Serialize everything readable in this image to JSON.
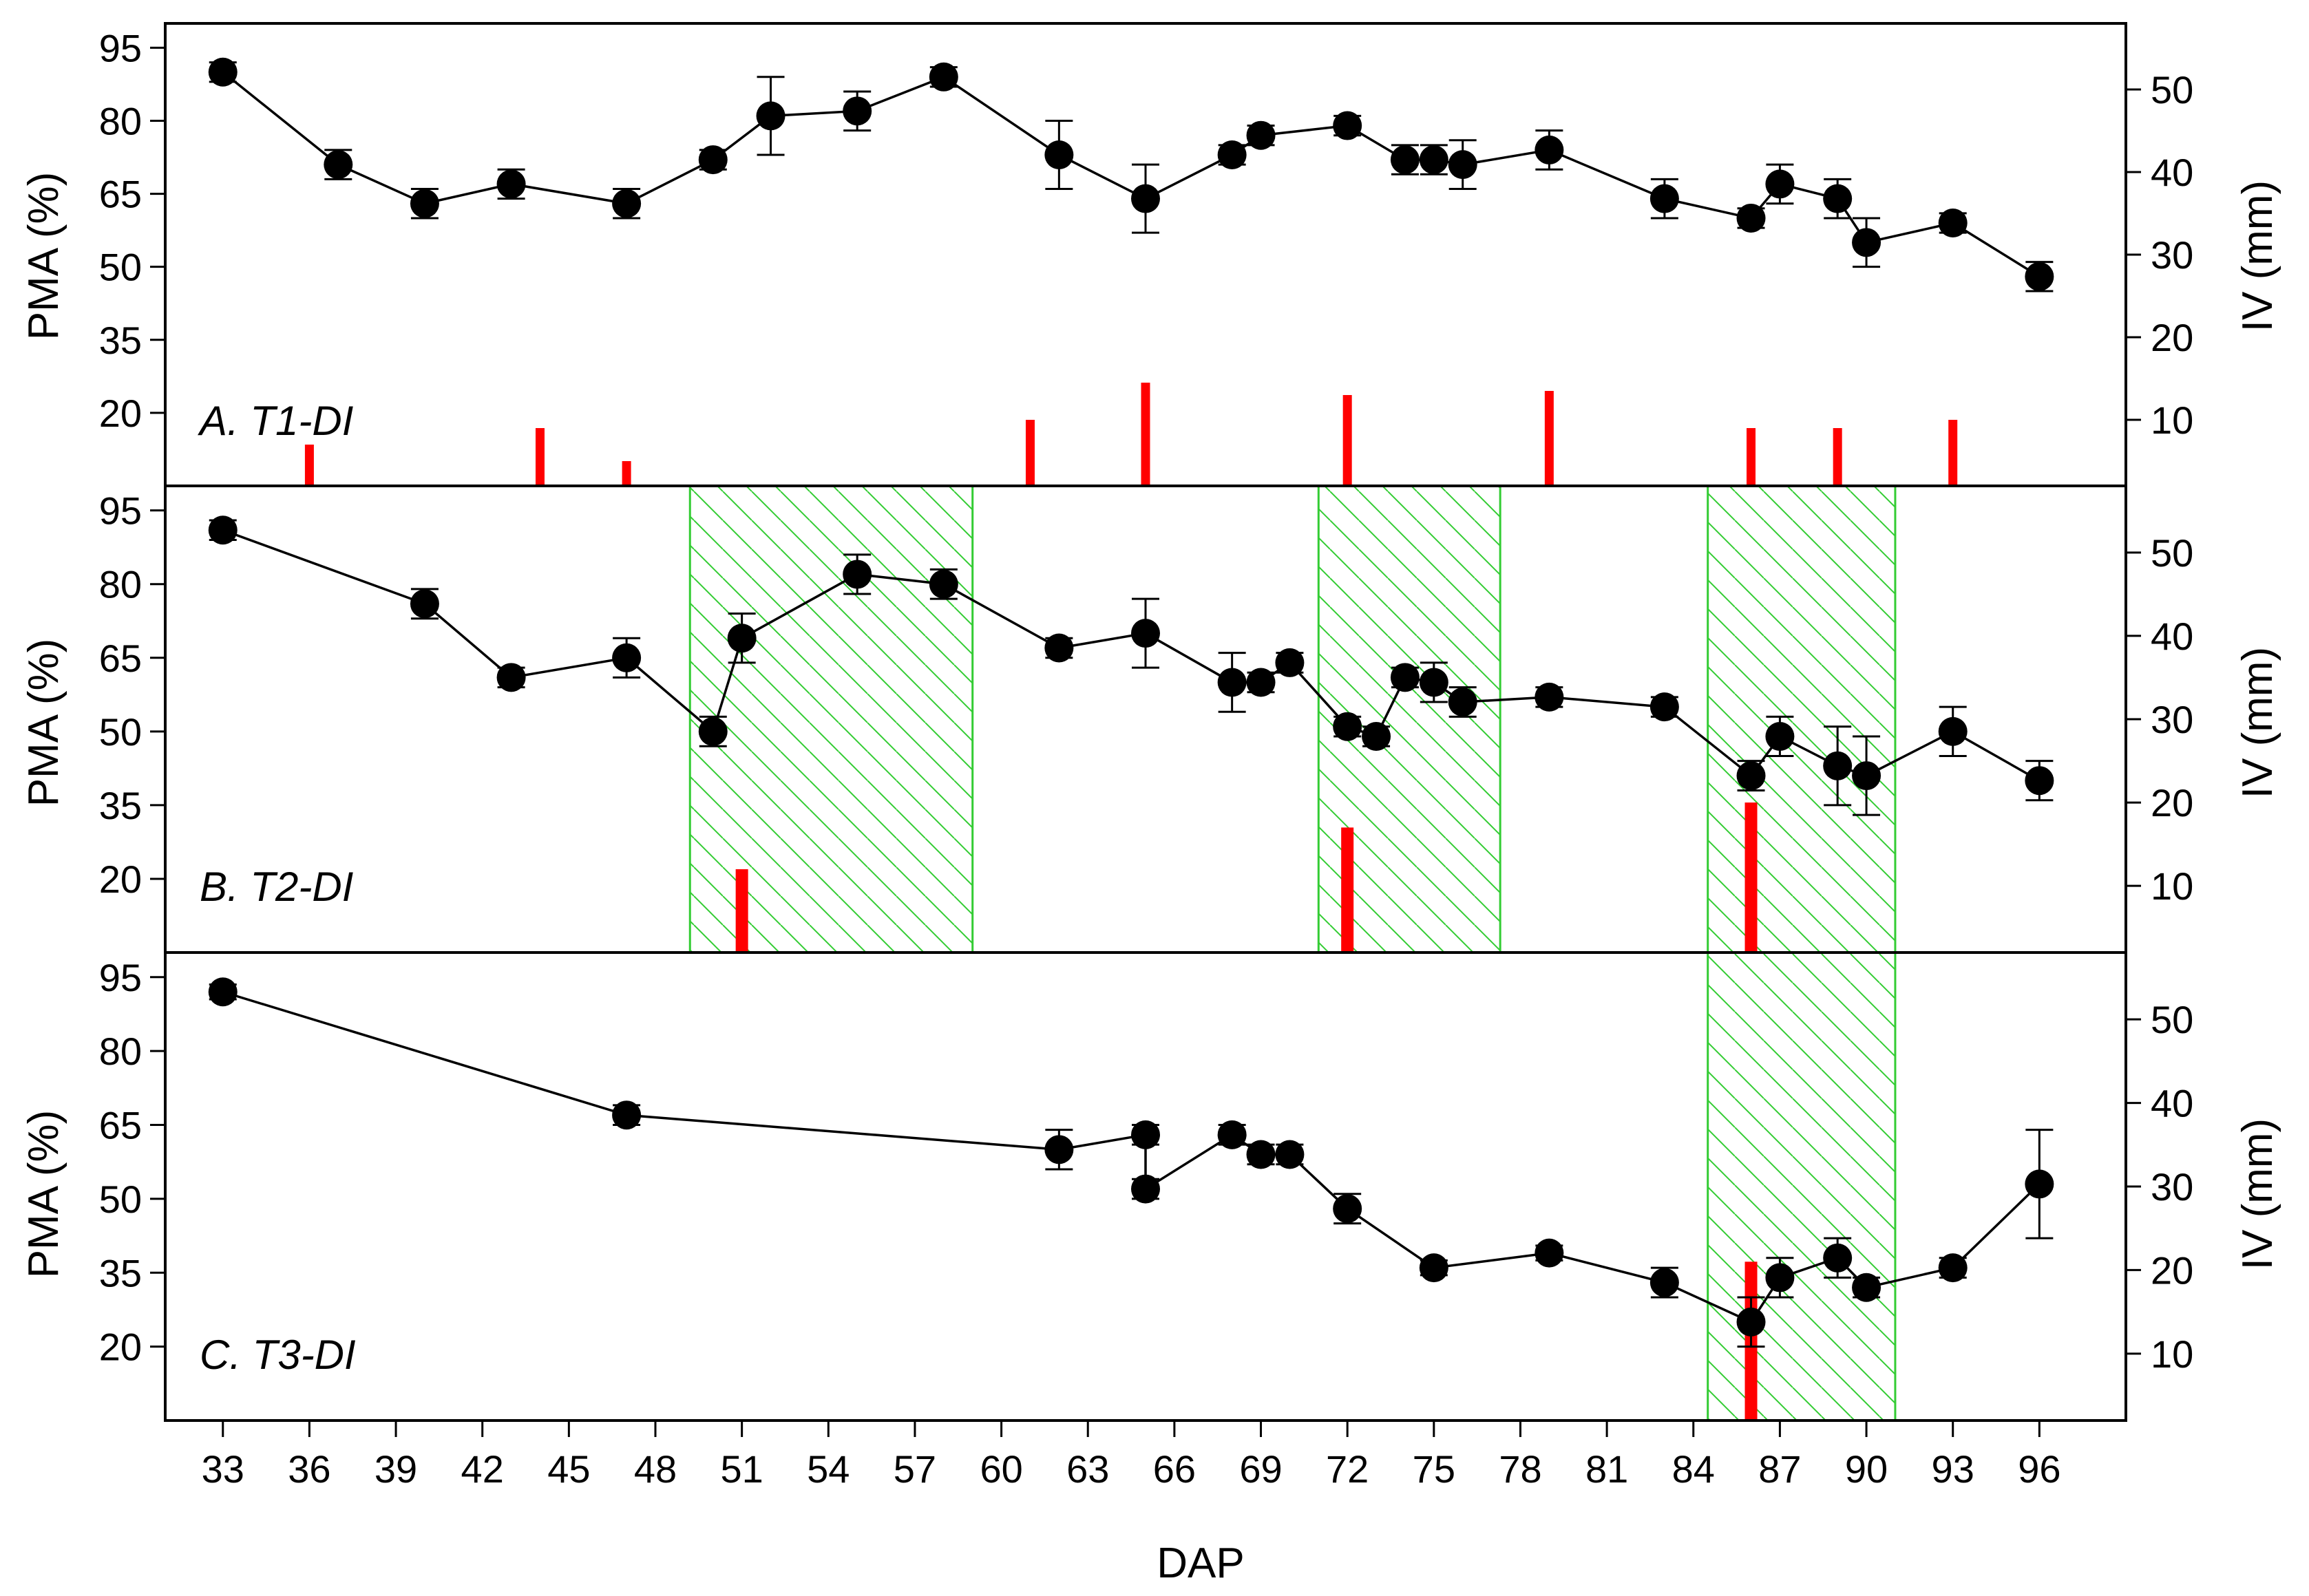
{
  "chart_data": {
    "type": "line",
    "xlabel": "DAP",
    "xlim": [
      31,
      99
    ],
    "x_ticks": [
      "33",
      "36",
      "39",
      "42",
      "45",
      "48",
      "51",
      "54",
      "57",
      "60",
      "63",
      "66",
      "69",
      "72",
      "75",
      "78",
      "81",
      "84",
      "87",
      "90",
      "93",
      "96"
    ],
    "ylabel_left": "PMA (%)",
    "ylabel_right": "IV (mm)",
    "ylim_left": [
      5,
      100
    ],
    "ylim_right": [
      2,
      58
    ],
    "y_ticks_left": [
      "20",
      "35",
      "50",
      "65",
      "80",
      "95"
    ],
    "y_ticks_right": [
      "10",
      "20",
      "30",
      "40",
      "50"
    ],
    "colors": {
      "line": "#000000",
      "bar": "#ff0000",
      "hatch": "#33cc33"
    },
    "panels": [
      {
        "label": "A. T1-DI",
        "pma": [
          {
            "x": 33,
            "y": 90,
            "err": 2
          },
          {
            "x": 37,
            "y": 71,
            "err": 3
          },
          {
            "x": 40,
            "y": 63,
            "err": 3
          },
          {
            "x": 43,
            "y": 67,
            "err": 3
          },
          {
            "x": 47,
            "y": 63,
            "err": 3
          },
          {
            "x": 50,
            "y": 72,
            "err": 2
          },
          {
            "x": 52,
            "y": 81,
            "err": 8
          },
          {
            "x": 55,
            "y": 82,
            "err": 4
          },
          {
            "x": 58,
            "y": 89,
            "err": 2
          },
          {
            "x": 62,
            "y": 73,
            "err": 7
          },
          {
            "x": 65,
            "y": 64,
            "err": 7
          },
          {
            "x": 68,
            "y": 73,
            "err": 2
          },
          {
            "x": 69,
            "y": 77,
            "err": 2
          },
          {
            "x": 72,
            "y": 79,
            "err": 2
          },
          {
            "x": 74,
            "y": 72,
            "err": 3
          },
          {
            "x": 75,
            "y": 72,
            "err": 3
          },
          {
            "x": 76,
            "y": 71,
            "err": 5
          },
          {
            "x": 79,
            "y": 74,
            "err": 4
          },
          {
            "x": 83,
            "y": 64,
            "err": 4
          },
          {
            "x": 86,
            "y": 60,
            "err": 2
          },
          {
            "x": 87,
            "y": 67,
            "err": 4
          },
          {
            "x": 89,
            "y": 64,
            "err": 4
          },
          {
            "x": 90,
            "y": 55,
            "err": 5
          },
          {
            "x": 93,
            "y": 59,
            "err": 2
          },
          {
            "x": 96,
            "y": 48,
            "err": 3
          }
        ],
        "iv": [
          {
            "x": 36,
            "y": 7
          },
          {
            "x": 44,
            "y": 9
          },
          {
            "x": 47,
            "y": 5
          },
          {
            "x": 61,
            "y": 10
          },
          {
            "x": 65,
            "y": 14.5
          },
          {
            "x": 72,
            "y": 13
          },
          {
            "x": 79,
            "y": 13.5
          },
          {
            "x": 86,
            "y": 9
          },
          {
            "x": 89,
            "y": 9
          },
          {
            "x": 93,
            "y": 10
          }
        ],
        "shaded_ranges": []
      },
      {
        "label": "B. T2-DI",
        "pma": [
          {
            "x": 33,
            "y": 91,
            "err": 2
          },
          {
            "x": 40,
            "y": 76,
            "err": 3
          },
          {
            "x": 43,
            "y": 61,
            "err": 2
          },
          {
            "x": 47,
            "y": 65,
            "err": 4
          },
          {
            "x": 50,
            "y": 50,
            "err": 3
          },
          {
            "x": 51,
            "y": 69,
            "err": 5
          },
          {
            "x": 55,
            "y": 82,
            "err": 4
          },
          {
            "x": 58,
            "y": 80,
            "err": 3
          },
          {
            "x": 62,
            "y": 67,
            "err": 2
          },
          {
            "x": 65,
            "y": 70,
            "err": 7
          },
          {
            "x": 68,
            "y": 60,
            "err": 6
          },
          {
            "x": 69,
            "y": 60,
            "err": 2
          },
          {
            "x": 70,
            "y": 64,
            "err": 2
          },
          {
            "x": 72,
            "y": 51,
            "err": 2
          },
          {
            "x": 73,
            "y": 49,
            "err": 2
          },
          {
            "x": 74,
            "y": 61,
            "err": 2
          },
          {
            "x": 75,
            "y": 60,
            "err": 4
          },
          {
            "x": 76,
            "y": 56,
            "err": 3
          },
          {
            "x": 79,
            "y": 57,
            "err": 2
          },
          {
            "x": 83,
            "y": 55,
            "err": 2
          },
          {
            "x": 86,
            "y": 41,
            "err": 3
          },
          {
            "x": 87,
            "y": 49,
            "err": 4
          },
          {
            "x": 89,
            "y": 43,
            "err": 8
          },
          {
            "x": 90,
            "y": 41,
            "err": 8
          },
          {
            "x": 93,
            "y": 50,
            "err": 5
          },
          {
            "x": 96,
            "y": 40,
            "err": 4
          }
        ],
        "iv": [
          {
            "x": 51,
            "y": 12
          },
          {
            "x": 72,
            "y": 17
          },
          {
            "x": 86,
            "y": 20
          }
        ],
        "shaded_ranges": [
          [
            49.2,
            59
          ],
          [
            71,
            77.3
          ],
          [
            84.5,
            91
          ]
        ]
      },
      {
        "label": "C. T3-DI",
        "pma": [
          {
            "x": 33,
            "y": 92,
            "err": 1.5
          },
          {
            "x": 47,
            "y": 67,
            "err": 2
          },
          {
            "x": 62,
            "y": 60,
            "err": 4
          },
          {
            "x": 65,
            "y": 63,
            "err": 2
          },
          {
            "x": 65,
            "y": 52,
            "err": 2
          },
          {
            "x": 68,
            "y": 63,
            "err": 2
          },
          {
            "x": 69,
            "y": 59,
            "err": 2
          },
          {
            "x": 70,
            "y": 59,
            "err": 2
          },
          {
            "x": 72,
            "y": 48,
            "err": 3
          },
          {
            "x": 75,
            "y": 36,
            "err": 1.5
          },
          {
            "x": 79,
            "y": 39,
            "err": 1.5
          },
          {
            "x": 83,
            "y": 33,
            "err": 3
          },
          {
            "x": 86,
            "y": 25,
            "err": 5
          },
          {
            "x": 87,
            "y": 34,
            "err": 4
          },
          {
            "x": 89,
            "y": 38,
            "err": 4
          },
          {
            "x": 90,
            "y": 32,
            "err": 2
          },
          {
            "x": 93,
            "y": 36,
            "err": 2
          },
          {
            "x": 96,
            "y": 53,
            "err": 11
          }
        ],
        "iv": [
          {
            "x": 86,
            "y": 21
          }
        ],
        "shaded_ranges": [
          [
            84.5,
            91
          ]
        ]
      }
    ]
  }
}
